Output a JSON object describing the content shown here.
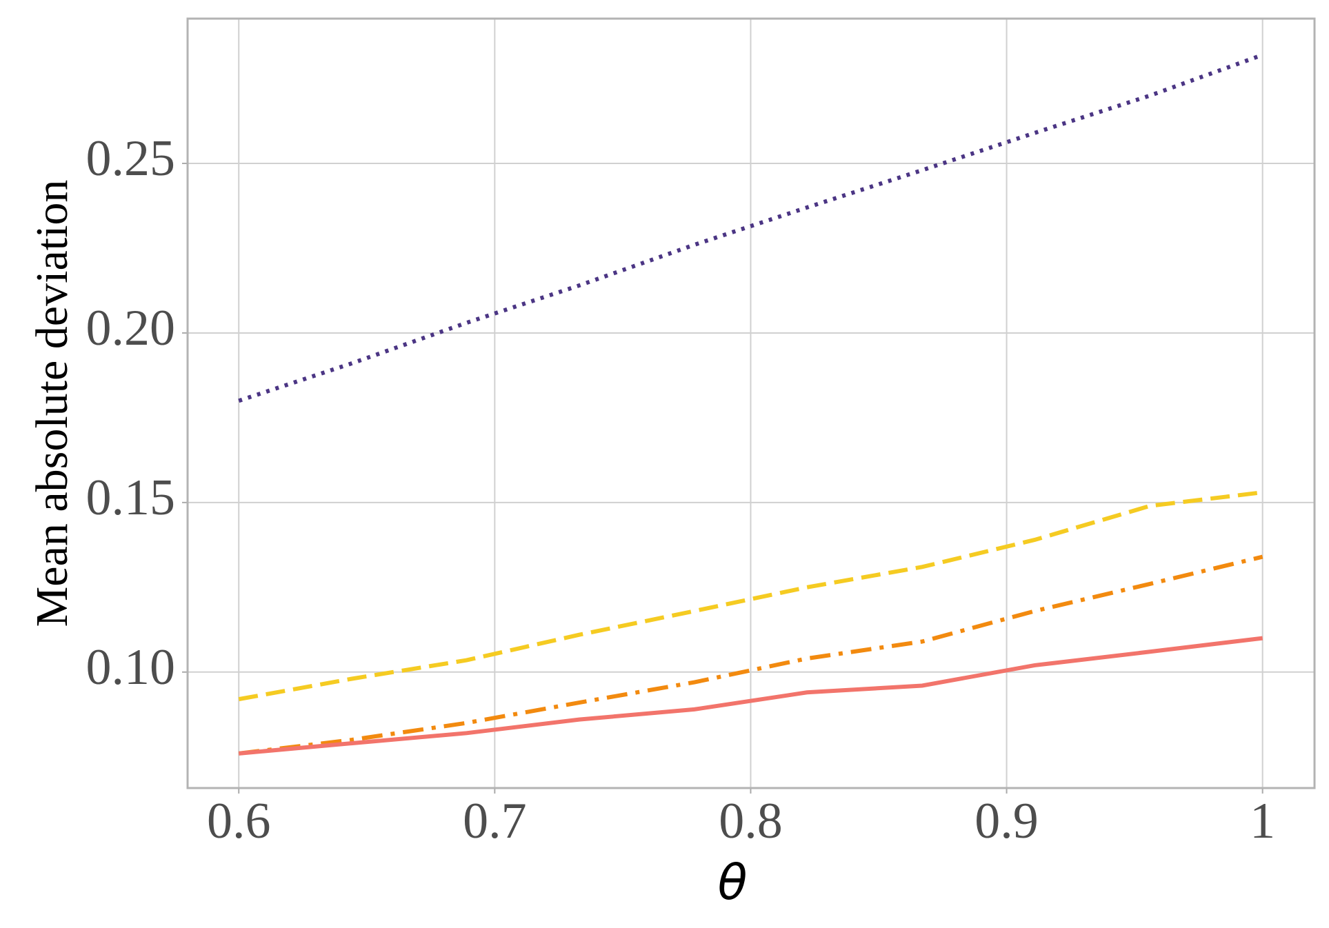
{
  "chart_data": {
    "type": "line",
    "x_label": "θ",
    "y_label": "Mean absolute deviation",
    "x": [
      0.6,
      0.644,
      0.689,
      0.733,
      0.778,
      0.822,
      0.867,
      0.911,
      0.956,
      1
    ],
    "series": [
      {
        "color": "#4b3584",
        "linestyle": "dotted",
        "values": [
          0.18,
          0.191,
          0.203,
          0.214,
          0.226,
          0.237,
          0.248,
          0.259,
          0.27,
          0.282
        ]
      },
      {
        "color": "#f5cb22",
        "linestyle": "dashed",
        "values": [
          0.092,
          0.098,
          0.1035,
          0.111,
          0.118,
          0.125,
          0.131,
          0.139,
          0.149,
          0.153
        ]
      },
      {
        "color": "#f28a0f",
        "linestyle": "dashdot",
        "values": [
          0.076,
          0.08,
          0.085,
          0.091,
          0.097,
          0.104,
          0.109,
          0.118,
          0.126,
          0.134
        ]
      },
      {
        "color": "#f2746b",
        "linestyle": "solid",
        "values": [
          0.076,
          0.079,
          0.082,
          0.086,
          0.089,
          0.094,
          0.096,
          0.102,
          0.106,
          0.11
        ]
      }
    ],
    "xlim": [
      0.58,
      1.0203
    ],
    "ylim": [
      0.0658,
      0.2927
    ],
    "xticks": [
      0.6,
      0.7,
      0.8,
      0.9,
      1
    ],
    "yticks": [
      {
        "value": 0.1,
        "label": "0.10"
      },
      {
        "value": 0.15,
        "label": "0.15"
      },
      {
        "value": 0.2,
        "label": "0.20"
      },
      {
        "value": 0.25,
        "label": "0.25"
      }
    ],
    "grid": true
  }
}
